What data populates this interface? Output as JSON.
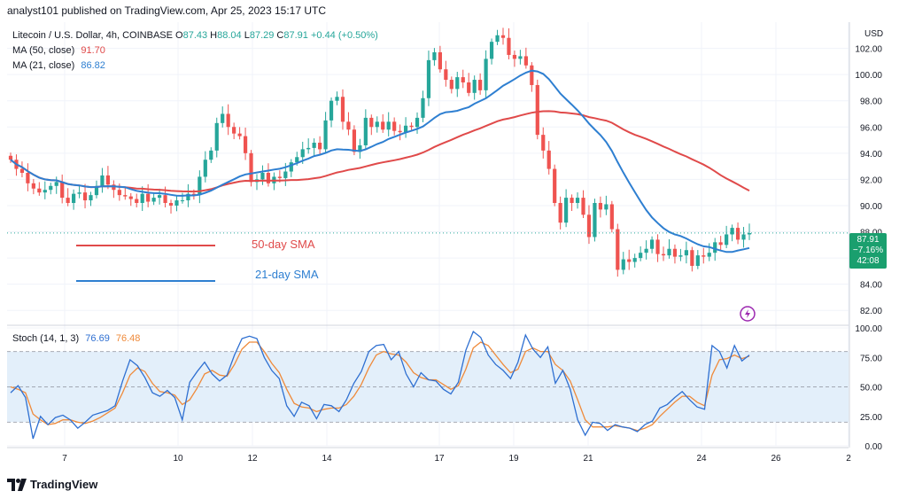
{
  "header": {
    "text": "analyst101 published on TradingView.com, Apr 25, 2023 15:17 UTC"
  },
  "legend": {
    "symbol": "Litecoin / U.S. Dollar, 4h, COINBASE",
    "ohlc": [
      {
        "k": "O",
        "v": "87.43"
      },
      {
        "k": "H",
        "v": "88.04"
      },
      {
        "k": "L",
        "v": "87.29"
      },
      {
        "k": "C",
        "v": "87.91"
      }
    ],
    "change": "+0.44 (+0.50%)",
    "ma50_label": "MA (50, close)",
    "ma50_value": "91.70",
    "ma21_label": "MA (21, close)",
    "ma21_value": "86.82"
  },
  "annotations": {
    "sma50": "50-day SMA",
    "sma21": "21-day SMA"
  },
  "price_axis": {
    "unit": "USD"
  },
  "last_price": {
    "price": "87.91",
    "change_pct": "−7.16%",
    "countdown": "42:08"
  },
  "stoch": {
    "label": "Stoch (14, 1, 3)",
    "k_value": "76.69",
    "d_value": "76.48"
  },
  "branding": {
    "logo_text": "TradingView"
  },
  "colors": {
    "up": "#26a69a",
    "down": "#ef5350",
    "ma50": "#e04a4a",
    "ma21": "#2e7fd1",
    "stoch_k": "#2e6fd1",
    "stoch_d": "#ef8a3a",
    "band": "#e3effa",
    "grid": "#f0f3fa"
  },
  "chart_data": [
    {
      "type": "candlestick",
      "title": "Litecoin / U.S. Dollar, 4h, COINBASE",
      "ylabel": "USD",
      "ylim": [
        81,
        104
      ],
      "x_ticks": [
        "7",
        "10",
        "12",
        "14",
        "17",
        "19",
        "21",
        "24",
        "26",
        "2"
      ],
      "y_ticks": [
        82,
        84,
        86,
        88,
        90,
        92,
        94,
        96,
        98,
        100,
        102
      ],
      "last_close": 87.91,
      "candles_close": [
        93.5,
        92.8,
        92.5,
        91.7,
        91.3,
        91.0,
        91.2,
        91.5,
        91.8,
        90.6,
        90.2,
        90.9,
        91.0,
        90.4,
        90.8,
        91.5,
        92.3,
        91.6,
        91.2,
        90.8,
        90.7,
        90.5,
        90.2,
        90.9,
        90.3,
        90.6,
        90.8,
        90.2,
        90.0,
        90.4,
        90.4,
        90.9,
        90.8,
        92.2,
        93.5,
        94.2,
        96.3,
        97.0,
        96.0,
        95.5,
        95.3,
        94.0,
        91.8,
        92.0,
        92.5,
        91.7,
        92.2,
        92.1,
        92.6,
        93.3,
        93.7,
        94.3,
        94.4,
        94.8,
        94.3,
        96.5,
        98.0,
        98.3,
        96.4,
        95.8,
        94.1,
        94.6,
        96.7,
        96.0,
        96.4,
        95.8,
        96.4,
        95.7,
        95.6,
        96.1,
        96.0,
        96.7,
        98.2,
        101.1,
        101.7,
        100.4,
        99.6,
        98.9,
        99.8,
        99.4,
        98.6,
        99.6,
        98.8,
        101.2,
        102.5,
        103.0,
        102.8,
        101.5,
        101.2,
        101.4,
        100.7,
        99.2,
        95.4,
        94.2,
        92.8,
        90.2,
        88.7,
        90.6,
        90.2,
        90.6,
        89.3,
        87.6,
        90.2,
        89.7,
        90.1,
        88.2,
        85.1,
        85.9,
        85.7,
        86.0,
        86.4,
        86.7,
        87.4,
        86.3,
        86.2,
        86.7,
        86.1,
        86.2,
        86.6,
        85.4,
        86.2,
        86.1,
        86.4,
        87.2,
        87.0,
        87.8,
        88.3,
        87.4,
        87.8,
        87.9
      ],
      "series": [
        {
          "name": "MA (50, close)",
          "last": 91.7
        },
        {
          "name": "MA (21, close)",
          "last": 86.82
        }
      ]
    },
    {
      "type": "line",
      "title": "Stoch (14, 1, 3)",
      "ylim": [
        0,
        100
      ],
      "y_ticks": [
        0,
        25,
        50,
        75,
        100
      ],
      "band": [
        20,
        80
      ],
      "series": [
        {
          "name": "%K",
          "values": [
            45,
            51,
            41,
            6,
            25,
            18,
            24,
            26,
            22,
            15,
            20,
            26,
            28,
            30,
            34,
            55,
            73,
            68,
            58,
            45,
            42,
            47,
            41,
            22,
            54,
            63,
            71,
            61,
            55,
            60,
            77,
            91,
            93,
            91,
            75,
            64,
            57,
            34,
            25,
            37,
            34,
            23,
            35,
            34,
            29,
            39,
            53,
            63,
            80,
            85,
            86,
            73,
            80,
            61,
            50,
            62,
            56,
            55,
            48,
            44,
            54,
            81,
            97,
            92,
            77,
            69,
            64,
            57,
            71,
            94,
            82,
            75,
            84,
            53,
            64,
            48,
            22,
            9,
            20,
            19,
            13,
            18,
            16,
            15,
            12,
            18,
            21,
            32,
            35,
            41,
            46,
            39,
            33,
            31,
            85,
            80,
            66,
            85,
            72,
            77
          ]
        },
        {
          "name": "%D",
          "values": [
            50,
            48,
            45,
            27,
            22,
            18,
            19,
            22,
            22,
            20,
            19,
            21,
            24,
            28,
            32,
            45,
            60,
            66,
            63,
            53,
            46,
            45,
            43,
            35,
            39,
            49,
            61,
            64,
            60,
            59,
            69,
            82,
            88,
            88,
            80,
            70,
            62,
            48,
            36,
            33,
            32,
            29,
            31,
            32,
            32,
            35,
            42,
            52,
            66,
            77,
            80,
            78,
            77,
            71,
            62,
            58,
            56,
            56,
            52,
            48,
            51,
            65,
            83,
            88,
            85,
            77,
            69,
            62,
            65,
            80,
            83,
            80,
            80,
            69,
            64,
            55,
            39,
            22,
            16,
            16,
            16,
            17,
            16,
            15,
            13,
            15,
            18,
            25,
            31,
            37,
            42,
            42,
            37,
            34,
            60,
            73,
            74,
            77,
            74,
            76
          ]
        }
      ]
    }
  ]
}
